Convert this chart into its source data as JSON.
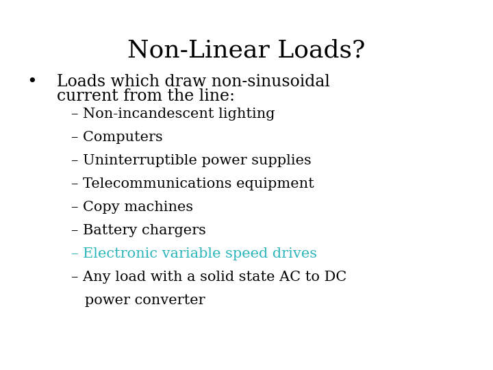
{
  "title": "Non-Linear Loads?",
  "title_fontsize": 26,
  "title_color": "#000000",
  "background_color": "#ffffff",
  "bullet_text_line1": "Loads which draw non-sinusoidal",
  "bullet_text_line2": "current from the line:",
  "bullet_fontsize": 17,
  "bullet_color": "#000000",
  "sub_items": [
    {
      "text": "– Non-incandescent lighting",
      "color": "#000000"
    },
    {
      "text": "– Computers",
      "color": "#000000"
    },
    {
      "text": "– Uninterruptible power supplies",
      "color": "#000000"
    },
    {
      "text": "– Telecommunications equipment",
      "color": "#000000"
    },
    {
      "text": "– Copy machines",
      "color": "#000000"
    },
    {
      "text": "– Battery chargers",
      "color": "#000000"
    },
    {
      "text": "– Electronic variable speed drives",
      "color": "#2ab5bb"
    },
    {
      "text": "– Any load with a solid state AC to DC",
      "color": "#000000"
    },
    {
      "text": "   power converter",
      "color": "#000000"
    }
  ],
  "sub_fontsize": 15,
  "teal_color": "#2ab5bb"
}
